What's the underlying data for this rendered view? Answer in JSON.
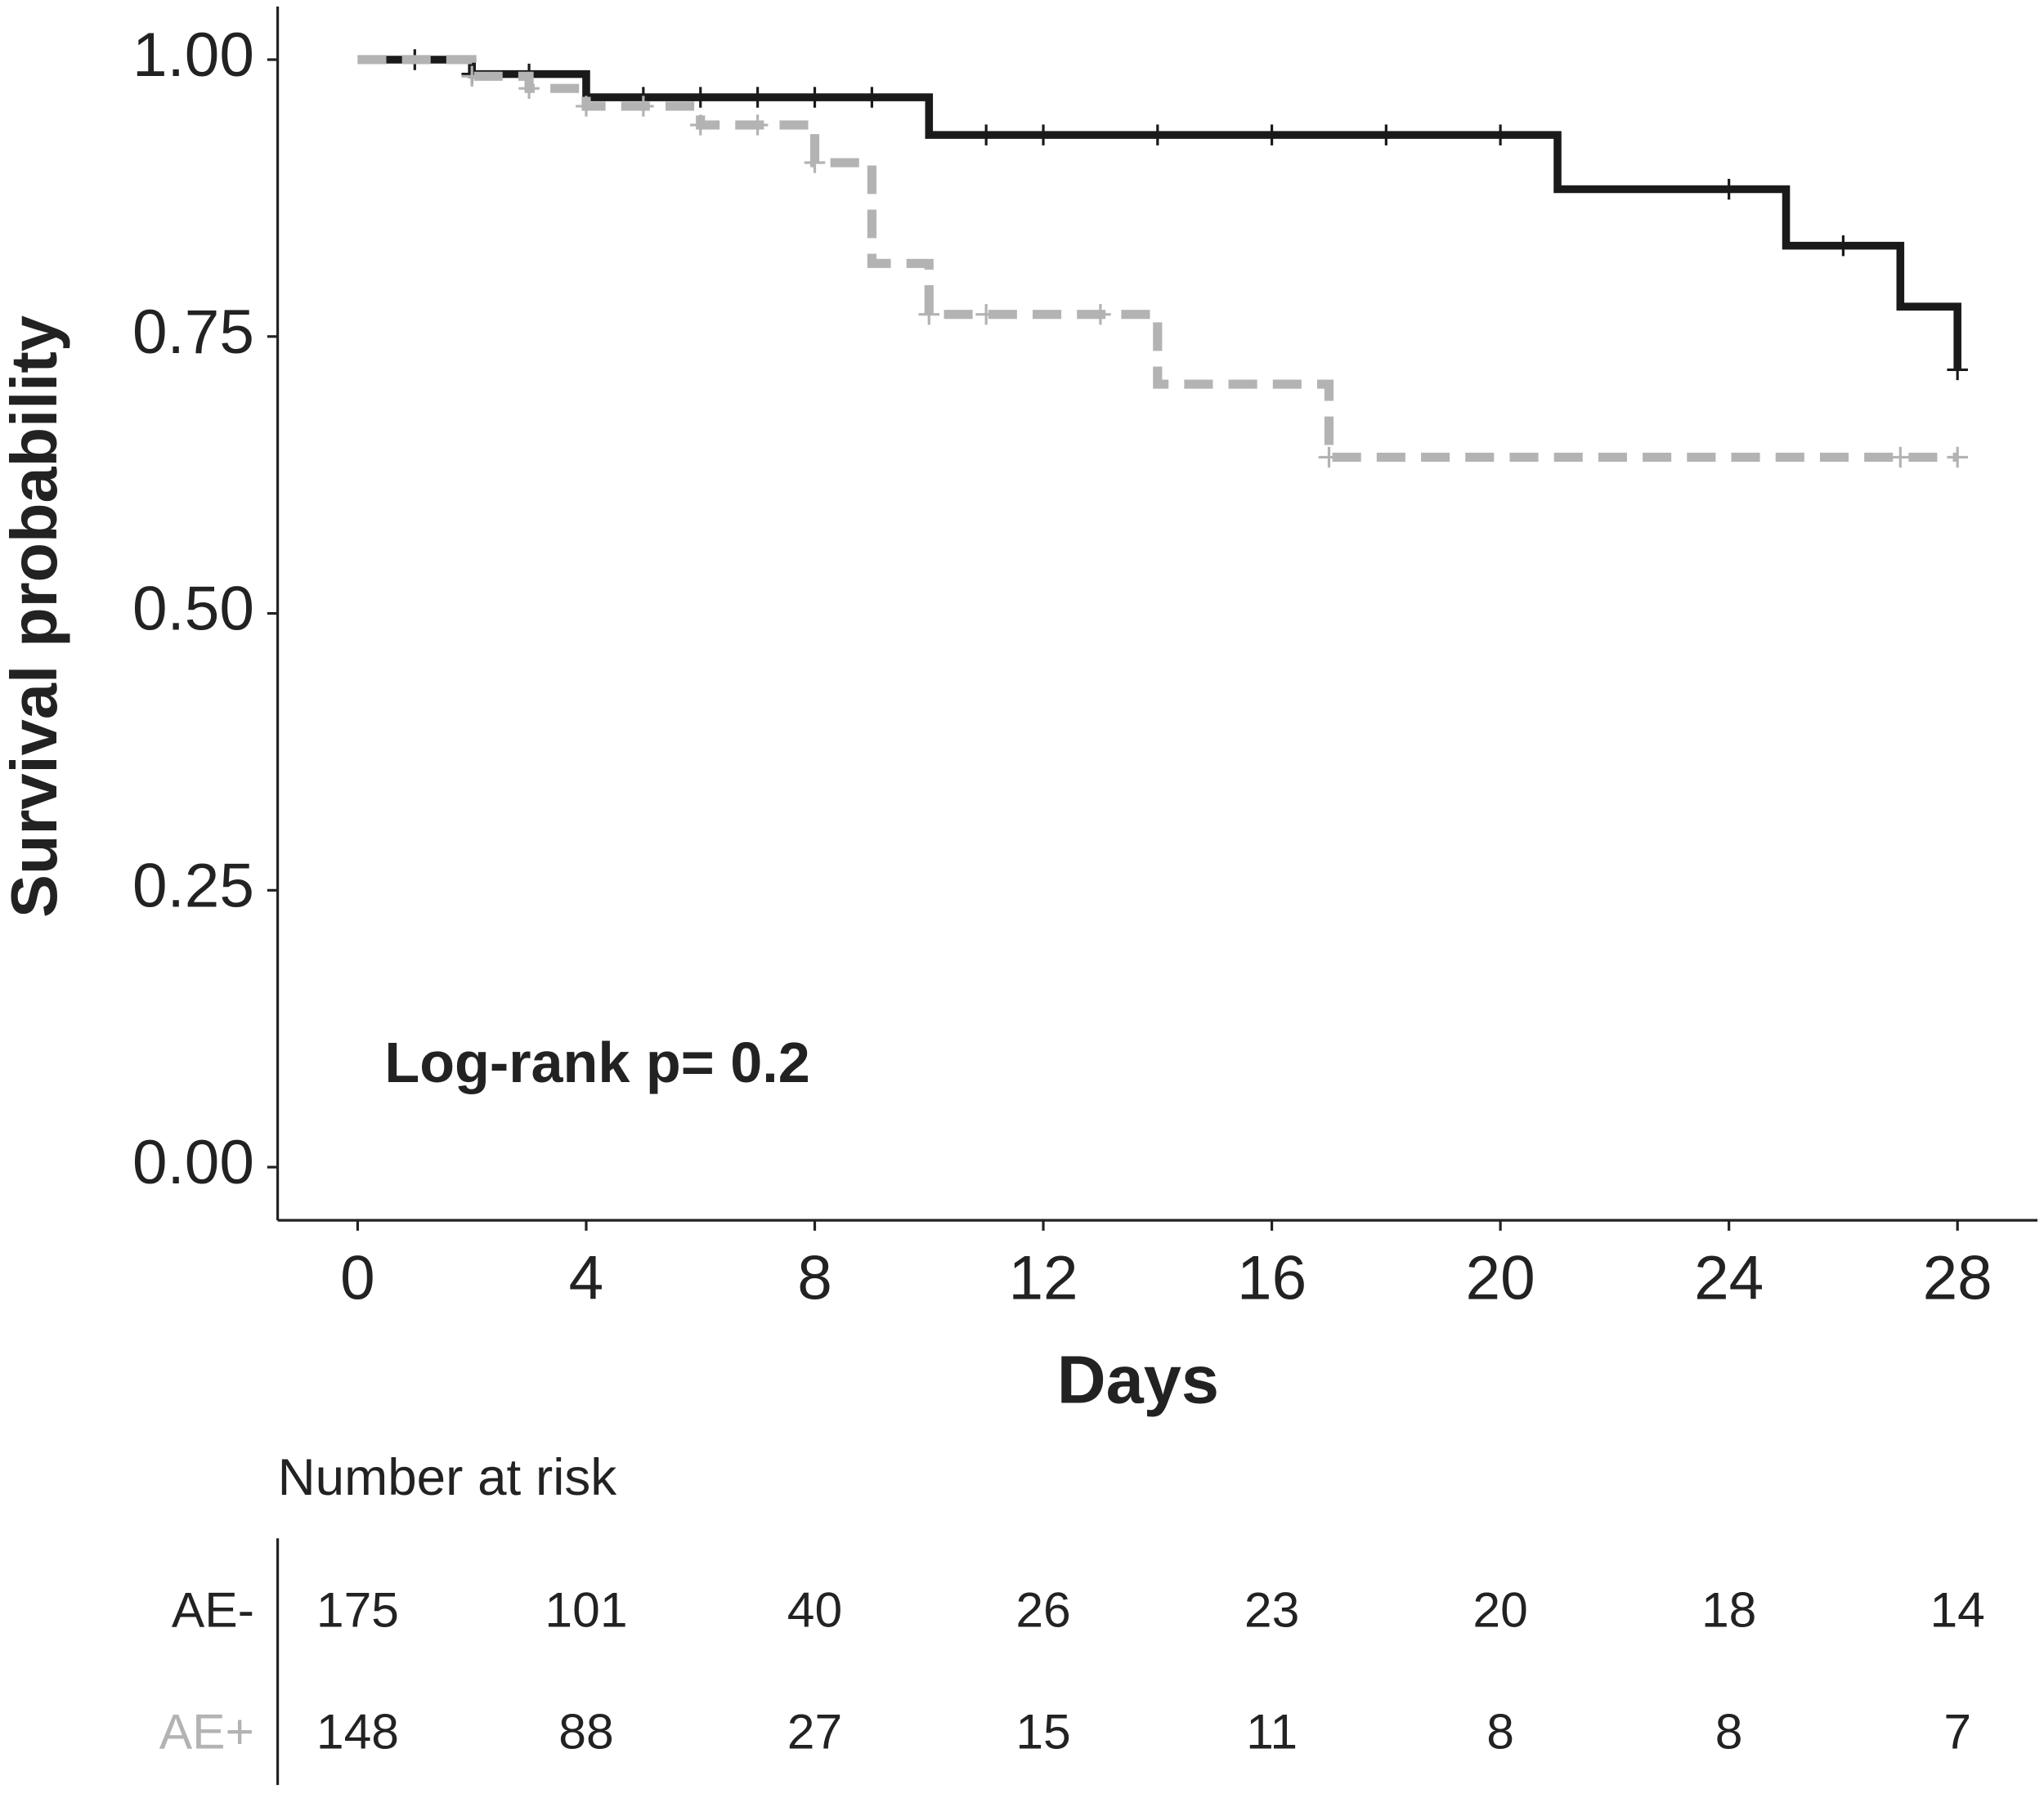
{
  "chart_data": {
    "type": "survival",
    "x_label": "Days",
    "y_label": "Survival probability",
    "annotation": "Log-rank p= 0.2",
    "xlim": [
      -1.4,
      29.4
    ],
    "ylim": [
      -0.048,
      1.048
    ],
    "xticks": [
      0,
      4,
      8,
      12,
      16,
      20,
      24,
      28
    ],
    "yticks": [
      {
        "value": 0,
        "label": "0.00"
      },
      {
        "value": 0.25,
        "label": "0.25"
      },
      {
        "value": 0.5,
        "label": "0.50"
      },
      {
        "value": 0.75,
        "label": "0.75"
      },
      {
        "value": 1,
        "label": "1.00"
      }
    ],
    "series": [
      {
        "name": "AE-",
        "color": "#1a1a1a",
        "dashed": false,
        "x": [
          0,
          2,
          4,
          10,
          21,
          25,
          27,
          28
        ],
        "values": [
          1.0,
          0.987,
          0.966,
          0.932,
          0.883,
          0.832,
          0.777,
          0.72
        ],
        "censor_x": [
          1,
          2,
          3,
          5,
          6,
          7,
          8,
          9,
          11,
          12,
          14,
          16,
          18,
          20,
          24,
          26,
          28
        ]
      },
      {
        "name": "AE+",
        "color": "#b3b3b3",
        "dashed": true,
        "x": [
          0,
          2,
          3,
          4,
          6,
          8,
          9,
          10,
          14,
          17,
          28
        ],
        "values": [
          1.0,
          0.985,
          0.974,
          0.958,
          0.941,
          0.907,
          0.816,
          0.77,
          0.707,
          0.641,
          0.641
        ],
        "censor_x": [
          2,
          3,
          4,
          5,
          6,
          7,
          8,
          10,
          11,
          13,
          17,
          27,
          28
        ]
      }
    ],
    "risk_table": {
      "title": "Number at risk",
      "counts": [
        [
          175,
          101,
          40,
          26,
          23,
          20,
          18,
          14
        ],
        [
          148,
          88,
          27,
          15,
          11,
          8,
          8,
          7
        ]
      ]
    }
  }
}
